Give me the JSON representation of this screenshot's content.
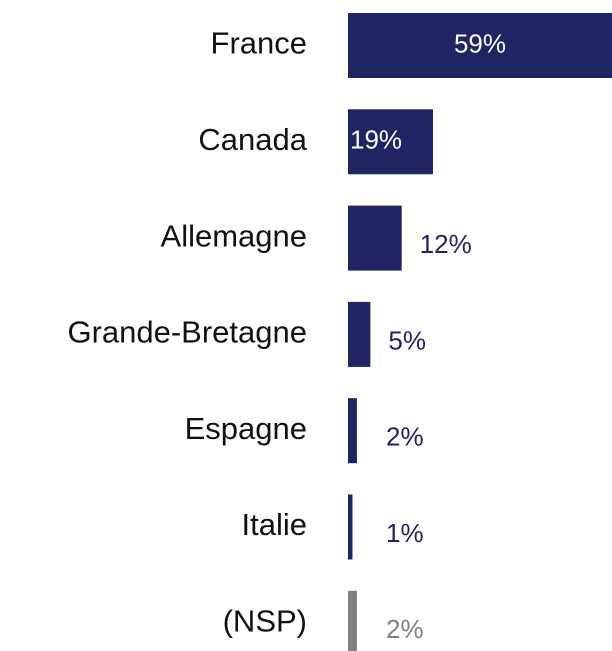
{
  "chart_data": {
    "type": "barh",
    "categories": [
      "France",
      "Canada",
      "Allemagne",
      "Grande-Bretagne",
      "Espagne",
      "Italie",
      "(NSP)"
    ],
    "values": [
      59,
      19,
      12,
      5,
      2,
      1,
      2
    ],
    "value_labels": [
      "59%",
      "19%",
      "12%",
      "5%",
      "2%",
      "1%",
      "2%"
    ],
    "colors": [
      "#1f2462",
      "#1f2462",
      "#1f2462",
      "#1f2462",
      "#1f2462",
      "#1f2462",
      "#808080"
    ]
  }
}
